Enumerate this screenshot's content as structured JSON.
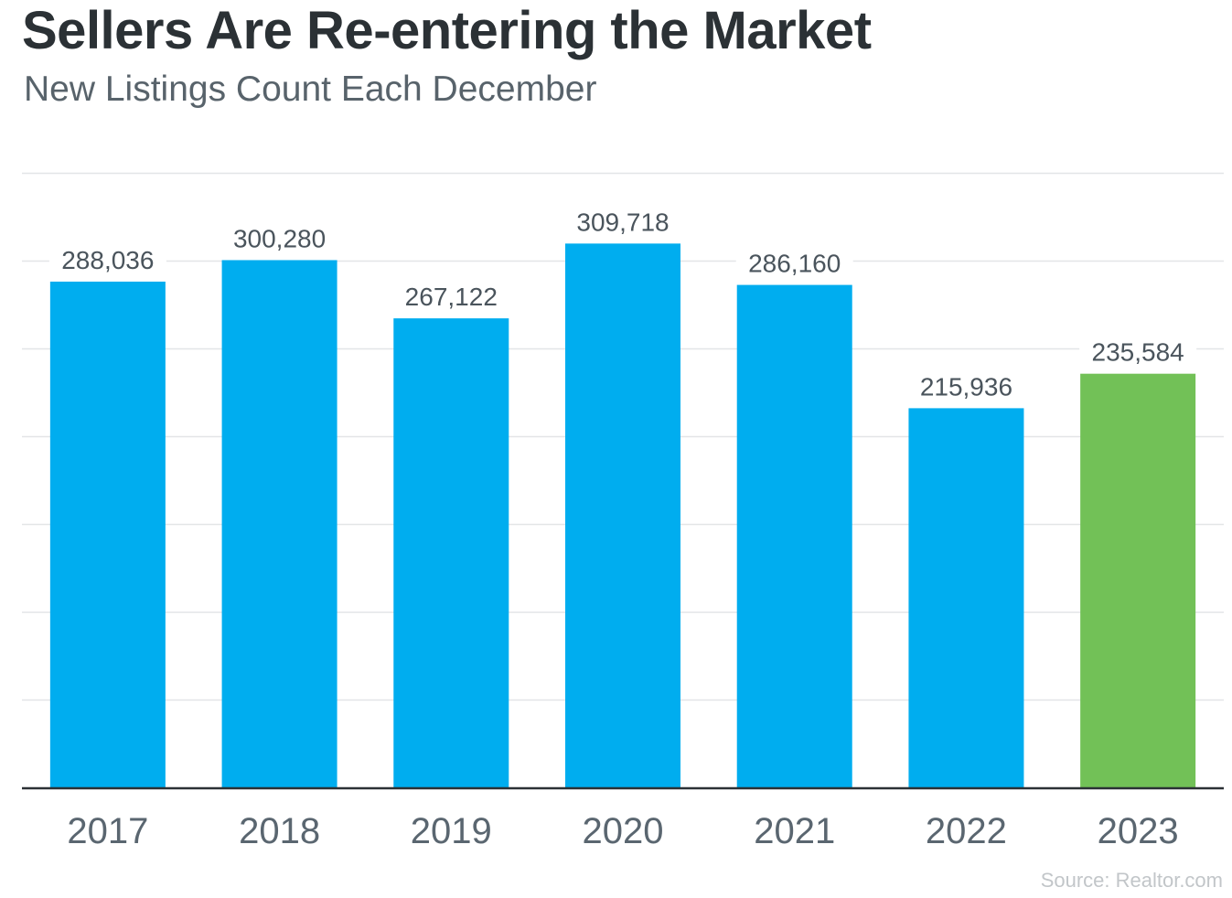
{
  "title": "Sellers Are Re-entering the Market",
  "subtitle": "New Listings Count Each December",
  "source": "Source: Realtor.com",
  "chart_data": {
    "type": "bar",
    "title": "Sellers Are Re-entering the Market",
    "subtitle": "New Listings Count Each December",
    "categories": [
      "2017",
      "2018",
      "2019",
      "2020",
      "2021",
      "2022",
      "2023"
    ],
    "values": [
      288036,
      300280,
      267122,
      309718,
      286160,
      215936,
      235584
    ],
    "value_labels": [
      "288,036",
      "300,280",
      "267,122",
      "309,718",
      "286,160",
      "215,936",
      "235,584"
    ],
    "ylim": [
      0,
      350000
    ],
    "grid": true,
    "legend": "none",
    "colors": {
      "default_bar": "#00adef",
      "highlight_bar": "#72c157",
      "highlight_category": "2023",
      "axis": "#2b3135",
      "grid": "#e3e5e7",
      "tick_text": "#5a6670",
      "label_text": "#4a545c"
    }
  }
}
